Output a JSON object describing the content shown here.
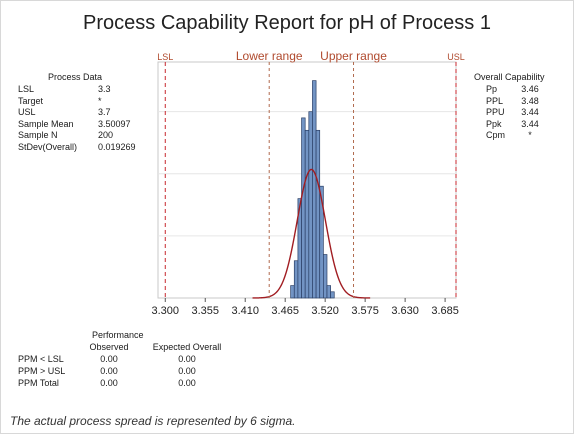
{
  "title": "Process Capability Report for pH of Process 1",
  "process_data": {
    "heading": "Process Data",
    "rows": [
      {
        "label": "LSL",
        "value": "3.3"
      },
      {
        "label": "Target",
        "value": "*"
      },
      {
        "label": "USL",
        "value": "3.7"
      },
      {
        "label": "Sample Mean",
        "value": "3.50097"
      },
      {
        "label": "Sample N",
        "value": "200"
      },
      {
        "label": "StDev(Overall)",
        "value": "0.019269"
      }
    ]
  },
  "overall_capability": {
    "heading": "Overall Capability",
    "rows": [
      {
        "label": "Pp",
        "value": "3.46"
      },
      {
        "label": "PPL",
        "value": "3.48"
      },
      {
        "label": "PPU",
        "value": "3.44"
      },
      {
        "label": "Ppk",
        "value": "3.44"
      },
      {
        "label": "Cpm",
        "value": "*"
      }
    ]
  },
  "performance": {
    "heading": "Performance",
    "col_observed": "Observed",
    "col_expected": "Expected Overall",
    "rows": [
      {
        "label": "PPM < LSL",
        "observed": "0.00",
        "expected": "0.00"
      },
      {
        "label": "PPM > USL",
        "observed": "0.00",
        "expected": "0.00"
      },
      {
        "label": "PPM Total",
        "observed": "0.00",
        "expected": "0.00"
      }
    ]
  },
  "footnote": "The actual process spread is represented by 6 sigma.",
  "colors": {
    "bar": "#7294c4",
    "bar_edge": "#2a3f66",
    "curve": "#a11d22",
    "ref_line": "#c8292f",
    "range_line": "#b06a4e",
    "ref_label": "#b04a2e"
  },
  "chart_data": {
    "type": "histogram",
    "title": "Process Capability Report for pH of Process 1",
    "xlim": [
      3.29,
      3.7
    ],
    "ylim": [
      0,
      38
    ],
    "x_ticks": [
      "3.300",
      "3.355",
      "3.410",
      "3.465",
      "3.520",
      "3.575",
      "3.630",
      "3.685"
    ],
    "bin_edges": [
      3.4725,
      3.4775,
      3.4825,
      3.4875,
      3.4925,
      3.4975,
      3.5025,
      3.5075,
      3.5125,
      3.5175,
      3.5225,
      3.5275,
      3.5325
    ],
    "counts": [
      2,
      6,
      16,
      29,
      27,
      30,
      35,
      27,
      18,
      7,
      2,
      1
    ],
    "normal_curve": {
      "mean": 3.50097,
      "stdev": 0.019269
    },
    "reference_lines": [
      {
        "label": "LSL",
        "x": 3.3,
        "style": "spec"
      },
      {
        "label": "Lower range",
        "x": 3.443,
        "style": "range"
      },
      {
        "label": "Upper range",
        "x": 3.559,
        "style": "range"
      },
      {
        "label": "USL",
        "x": 3.7,
        "style": "spec"
      }
    ]
  }
}
